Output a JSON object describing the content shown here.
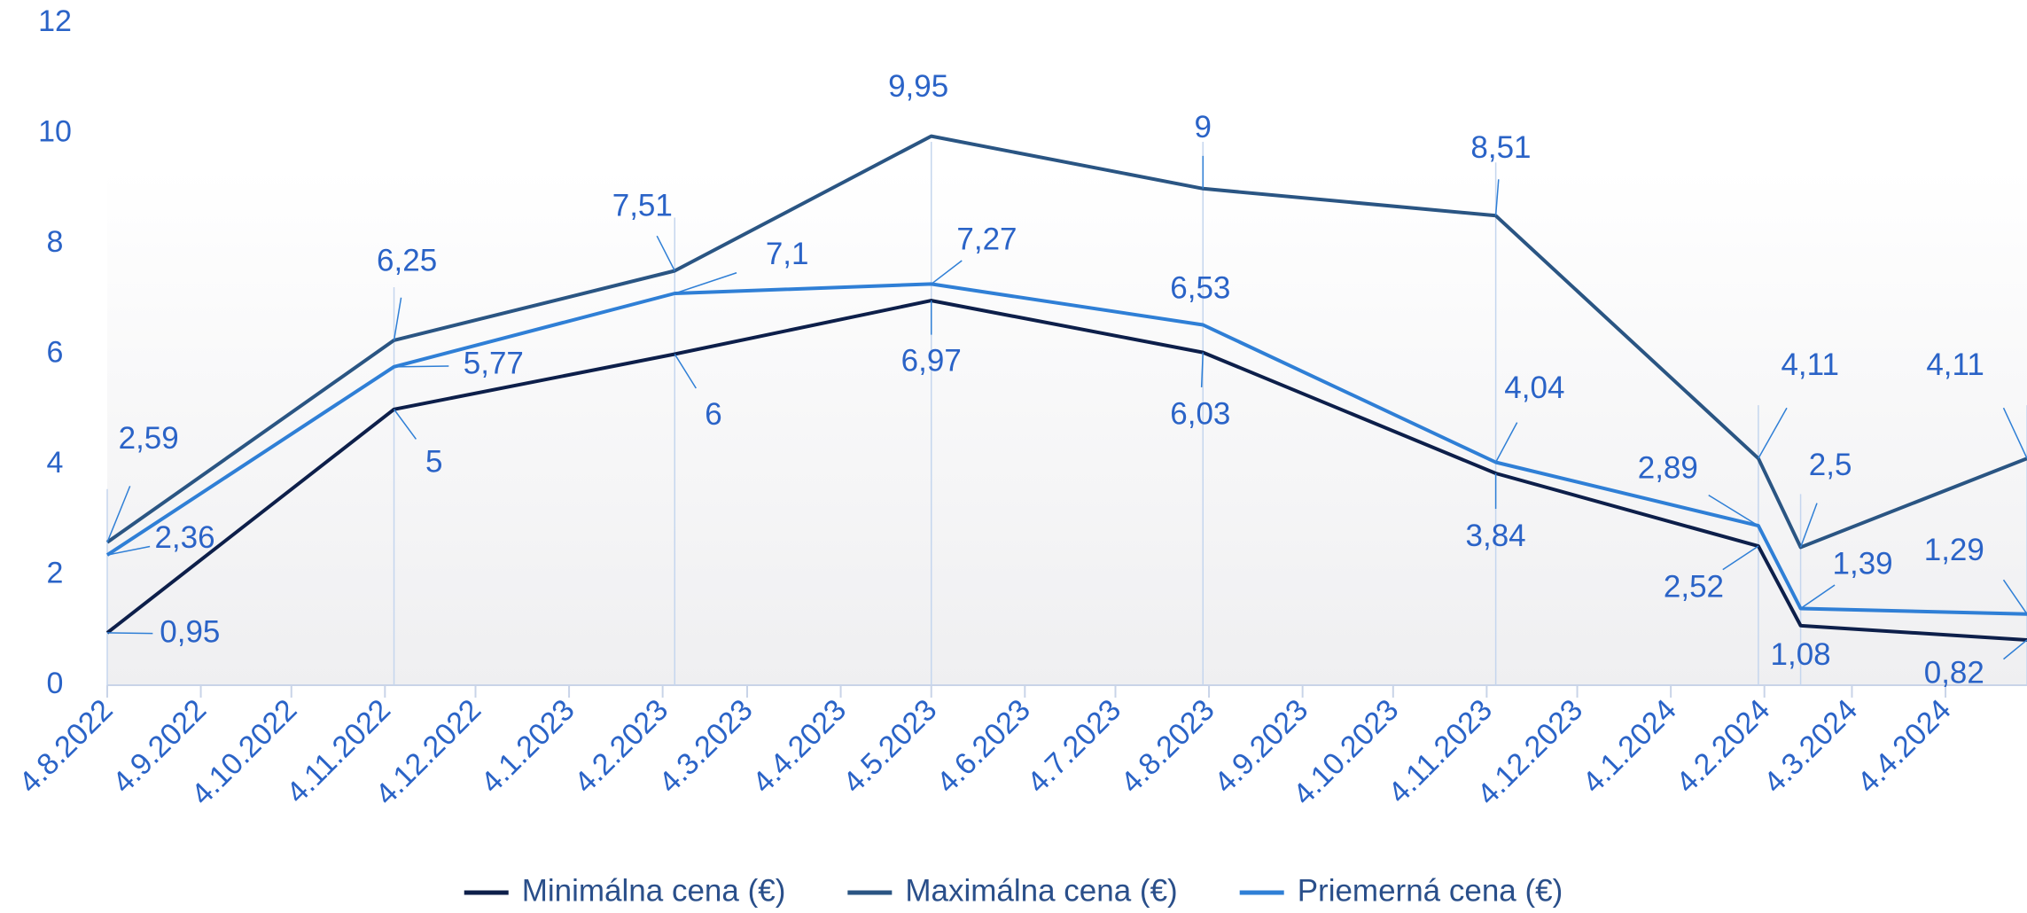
{
  "chart_data": {
    "type": "line",
    "x": [
      "4.8.2022",
      "7.11.2022",
      "8.2.2023",
      "4.5.2023",
      "2.8.2023",
      "7.11.2023",
      "2.2.2024",
      "16.2.2024",
      "1.5.2024"
    ],
    "series": [
      {
        "name": "Minimálna cena (€)",
        "color": "#0d1f4a",
        "values": [
          0.95,
          5,
          6,
          6.97,
          6.03,
          3.84,
          2.52,
          1.08,
          0.82
        ],
        "value_labels": [
          "0,95",
          "5",
          "6",
          "6,97",
          "6,03",
          "3,84",
          "2,52",
          "1,08",
          "0,82"
        ]
      },
      {
        "name": "Maximálna cena (€)",
        "color": "#2a5583",
        "values": [
          2.59,
          6.25,
          7.51,
          9.95,
          9,
          8.51,
          4.11,
          2.5,
          4.11
        ],
        "value_labels": [
          "2,59",
          "6,25",
          "7,51",
          "9,95",
          "9",
          "8,51",
          "4,11",
          "2,5",
          "4,11"
        ]
      },
      {
        "name": "Priemerná cena (€)",
        "color": "#2f7fd6",
        "values": [
          2.36,
          5.77,
          7.1,
          7.27,
          6.53,
          4.04,
          2.89,
          1.39,
          1.29
        ],
        "value_labels": [
          "2,36",
          "5,77",
          "7,1",
          "7,27",
          "6,53",
          "4,04",
          "2,89",
          "1,39",
          "1,29"
        ]
      }
    ],
    "xlim": [
      "4.8.2022",
      "1.5.2024"
    ],
    "xticks": [
      "4.8.2022",
      "4.9.2022",
      "4.10.2022",
      "4.11.2022",
      "4.12.2022",
      "4.1.2023",
      "4.2.2023",
      "4.3.2023",
      "4.4.2023",
      "4.5.2023",
      "4.6.2023",
      "4.7.2023",
      "4.8.2023",
      "4.9.2023",
      "4.10.2023",
      "4.11.2023",
      "4.12.2023",
      "4.1.2024",
      "4.2.2024",
      "4.3.2024",
      "4.4.2024"
    ],
    "ylim": [
      0,
      12
    ],
    "yticks": [
      0,
      2,
      4,
      6,
      8,
      10,
      12
    ],
    "legend": "bottom"
  }
}
